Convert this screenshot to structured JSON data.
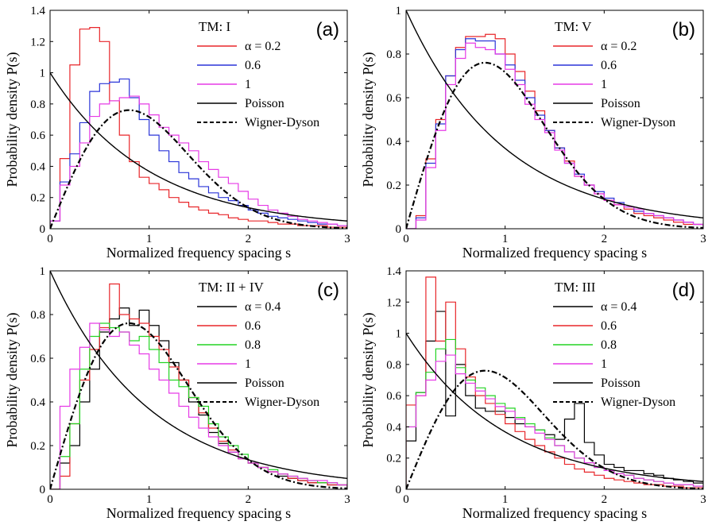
{
  "figure": {
    "xlabel": "Normalized frequency spacing s",
    "ylabel": "Probability density P(s)"
  },
  "chart_data": [
    {
      "type": "line",
      "panel_label": "(a)",
      "legend_title": "TM: I",
      "xlim": [
        0,
        3
      ],
      "ylim": [
        0,
        1.4
      ],
      "xticks": [
        "0",
        "1",
        "2",
        "3"
      ],
      "yticks": [
        "0",
        "0.2",
        "0.4",
        "0.6",
        "0.8",
        "1",
        "1.2",
        "1.4"
      ],
      "bin_edges": [
        0,
        0.1,
        0.2,
        0.3,
        0.4,
        0.5,
        0.6,
        0.7,
        0.8,
        0.9,
        1.0,
        1.1,
        1.2,
        1.3,
        1.4,
        1.5,
        1.6,
        1.7,
        1.8,
        1.9,
        2.0,
        2.1,
        2.2,
        2.3,
        2.4,
        2.5,
        2.6,
        2.7,
        2.8,
        2.9,
        3.0
      ],
      "histograms": [
        {
          "name": "α = 0.2",
          "color": "#e8262a",
          "values": [
            0.05,
            0.45,
            1.05,
            1.28,
            1.29,
            1.2,
            0.82,
            0.6,
            0.43,
            0.33,
            0.29,
            0.25,
            0.2,
            0.17,
            0.14,
            0.12,
            0.1,
            0.09,
            0.07,
            0.06,
            0.05,
            0.05,
            0.04,
            0.03,
            0.03,
            0.02,
            0.02,
            0.02,
            0.01,
            0.01
          ]
        },
        {
          "name": "0.6",
          "color": "#2b35d8",
          "values": [
            0.05,
            0.3,
            0.48,
            0.68,
            0.88,
            0.93,
            0.94,
            0.96,
            0.84,
            0.7,
            0.6,
            0.5,
            0.43,
            0.36,
            0.32,
            0.27,
            0.23,
            0.2,
            0.18,
            0.15,
            0.12,
            0.1,
            0.08,
            0.07,
            0.06,
            0.05,
            0.04,
            0.03,
            0.03,
            0.02
          ]
        },
        {
          "name": "1",
          "color": "#e63ae6",
          "values": [
            0.05,
            0.28,
            0.4,
            0.55,
            0.72,
            0.8,
            0.82,
            0.84,
            0.85,
            0.8,
            0.73,
            0.65,
            0.6,
            0.55,
            0.5,
            0.43,
            0.38,
            0.33,
            0.29,
            0.24,
            0.19,
            0.15,
            0.12,
            0.1,
            0.08,
            0.06,
            0.05,
            0.04,
            0.03,
            0.02
          ]
        }
      ],
      "curves": [
        {
          "name": "Poisson",
          "style": "solid"
        },
        {
          "name": "Wigner-Dyson",
          "style": "dashdot"
        }
      ]
    },
    {
      "type": "line",
      "panel_label": "(b)",
      "legend_title": "TM: V",
      "xlim": [
        0,
        3
      ],
      "ylim": [
        0,
        1
      ],
      "xticks": [
        "0",
        "1",
        "2",
        "3"
      ],
      "yticks": [
        "0",
        "0.2",
        "0.4",
        "0.6",
        "0.8",
        "1"
      ],
      "bin_edges": [
        0,
        0.1,
        0.2,
        0.3,
        0.4,
        0.5,
        0.6,
        0.7,
        0.8,
        0.9,
        1.0,
        1.1,
        1.2,
        1.3,
        1.4,
        1.5,
        1.6,
        1.7,
        1.8,
        1.9,
        2.0,
        2.1,
        2.2,
        2.3,
        2.4,
        2.5,
        2.6,
        2.7,
        2.8,
        2.9,
        3.0
      ],
      "histograms": [
        {
          "name": "α = 0.2",
          "color": "#e8262a",
          "values": [
            0.0,
            0.06,
            0.32,
            0.5,
            0.7,
            0.83,
            0.88,
            0.88,
            0.89,
            0.87,
            0.8,
            0.72,
            0.63,
            0.54,
            0.45,
            0.37,
            0.31,
            0.24,
            0.2,
            0.16,
            0.13,
            0.11,
            0.09,
            0.07,
            0.06,
            0.05,
            0.04,
            0.03,
            0.02,
            0.02
          ]
        },
        {
          "name": "0.6",
          "color": "#2b35d8",
          "values": [
            0.0,
            0.05,
            0.3,
            0.48,
            0.7,
            0.82,
            0.87,
            0.86,
            0.86,
            0.8,
            0.75,
            0.68,
            0.6,
            0.52,
            0.45,
            0.37,
            0.3,
            0.25,
            0.2,
            0.17,
            0.14,
            0.12,
            0.1,
            0.08,
            0.07,
            0.06,
            0.05,
            0.04,
            0.03,
            0.02
          ]
        },
        {
          "name": "1",
          "color": "#e63ae6",
          "values": [
            0.0,
            0.04,
            0.28,
            0.45,
            0.66,
            0.78,
            0.85,
            0.83,
            0.82,
            0.8,
            0.73,
            0.66,
            0.57,
            0.5,
            0.44,
            0.36,
            0.3,
            0.24,
            0.2,
            0.16,
            0.13,
            0.11,
            0.1,
            0.09,
            0.07,
            0.06,
            0.05,
            0.04,
            0.03,
            0.02
          ]
        }
      ],
      "curves": [
        {
          "name": "Poisson",
          "style": "solid"
        },
        {
          "name": "Wigner-Dyson",
          "style": "dashdot"
        }
      ]
    },
    {
      "type": "line",
      "panel_label": "(c)",
      "legend_title": "TM: II + IV",
      "xlim": [
        0,
        3
      ],
      "ylim": [
        0,
        1
      ],
      "xticks": [
        "0",
        "1",
        "2",
        "3"
      ],
      "yticks": [
        "0",
        "0.2",
        "0.4",
        "0.6",
        "0.8",
        "1"
      ],
      "bin_edges": [
        0,
        0.1,
        0.2,
        0.3,
        0.4,
        0.5,
        0.6,
        0.7,
        0.8,
        0.9,
        1.0,
        1.1,
        1.2,
        1.3,
        1.4,
        1.5,
        1.6,
        1.7,
        1.8,
        1.9,
        2.0,
        2.1,
        2.2,
        2.3,
        2.4,
        2.5,
        2.6,
        2.7,
        2.8,
        2.9,
        3.0
      ],
      "histograms": [
        {
          "name": "α = 0.4",
          "color": "#000000",
          "values": [
            0.0,
            0.12,
            0.2,
            0.4,
            0.55,
            0.72,
            0.78,
            0.83,
            0.75,
            0.82,
            0.75,
            0.68,
            0.58,
            0.5,
            0.4,
            0.34,
            0.26,
            0.21,
            0.17,
            0.14,
            0.12,
            0.1,
            0.08,
            0.06,
            0.05,
            0.04,
            0.03,
            0.03,
            0.02,
            0.02
          ]
        },
        {
          "name": "0.6",
          "color": "#e8262a",
          "values": [
            0.0,
            0.06,
            0.3,
            0.5,
            0.64,
            0.74,
            0.94,
            0.8,
            0.78,
            0.76,
            0.7,
            0.64,
            0.56,
            0.5,
            0.42,
            0.35,
            0.28,
            0.22,
            0.18,
            0.14,
            0.12,
            0.1,
            0.08,
            0.07,
            0.05,
            0.04,
            0.03,
            0.03,
            0.02,
            0.02
          ]
        },
        {
          "name": "0.8",
          "color": "#23d423",
          "values": [
            0.0,
            0.15,
            0.3,
            0.55,
            0.7,
            0.76,
            0.74,
            0.72,
            0.68,
            0.7,
            0.64,
            0.58,
            0.5,
            0.47,
            0.42,
            0.38,
            0.3,
            0.24,
            0.2,
            0.16,
            0.12,
            0.1,
            0.09,
            0.07,
            0.06,
            0.05,
            0.04,
            0.03,
            0.03,
            0.02
          ]
        },
        {
          "name": "1",
          "color": "#e63ae6",
          "values": [
            0.0,
            0.38,
            0.55,
            0.65,
            0.76,
            0.73,
            0.7,
            0.72,
            0.66,
            0.62,
            0.55,
            0.5,
            0.44,
            0.38,
            0.33,
            0.28,
            0.24,
            0.2,
            0.17,
            0.14,
            0.12,
            0.1,
            0.08,
            0.07,
            0.06,
            0.05,
            0.04,
            0.04,
            0.03,
            0.02
          ]
        }
      ],
      "curves": [
        {
          "name": "Poisson",
          "style": "solid"
        },
        {
          "name": "Wigner-Dyson",
          "style": "dashdot"
        }
      ]
    },
    {
      "type": "line",
      "panel_label": "(d)",
      "legend_title": "TM: III",
      "xlim": [
        0,
        3
      ],
      "ylim": [
        0,
        1.4
      ],
      "xticks": [
        "0",
        "1",
        "2",
        "3"
      ],
      "yticks": [
        "0",
        "0.2",
        "0.4",
        "0.6",
        "0.8",
        "1",
        "1.2",
        "1.4"
      ],
      "bin_edges": [
        0,
        0.1,
        0.2,
        0.3,
        0.4,
        0.5,
        0.6,
        0.7,
        0.8,
        0.9,
        1.0,
        1.1,
        1.2,
        1.3,
        1.4,
        1.5,
        1.6,
        1.7,
        1.8,
        1.9,
        2.0,
        2.1,
        2.2,
        2.3,
        2.4,
        2.5,
        2.6,
        2.7,
        2.8,
        2.9,
        3.0
      ],
      "histograms": [
        {
          "name": "α = 0.4",
          "color": "#000000",
          "values": [
            0.31,
            0.62,
            0.95,
            1.14,
            0.47,
            0.8,
            0.6,
            0.52,
            0.5,
            0.5,
            0.46,
            0.42,
            0.4,
            0.38,
            0.35,
            0.32,
            0.45,
            0.55,
            0.3,
            0.22,
            0.16,
            0.14,
            0.12,
            0.12,
            0.1,
            0.09,
            0.07,
            0.06,
            0.05,
            0.04
          ]
        },
        {
          "name": "0.6",
          "color": "#e8262a",
          "values": [
            0.54,
            0.6,
            1.36,
            0.95,
            1.2,
            0.9,
            0.72,
            0.6,
            0.55,
            0.48,
            0.42,
            0.37,
            0.32,
            0.28,
            0.24,
            0.2,
            0.16,
            0.13,
            0.11,
            0.09,
            0.07,
            0.06,
            0.05,
            0.04,
            0.03,
            0.03,
            0.02,
            0.02,
            0.01,
            0.01
          ]
        },
        {
          "name": "0.8",
          "color": "#23d423",
          "values": [
            0.4,
            0.62,
            0.75,
            0.9,
            0.96,
            0.78,
            0.7,
            0.65,
            0.6,
            0.55,
            0.52,
            0.46,
            0.42,
            0.38,
            0.33,
            0.28,
            0.24,
            0.2,
            0.17,
            0.14,
            0.12,
            0.1,
            0.09,
            0.07,
            0.06,
            0.05,
            0.04,
            0.03,
            0.03,
            0.02
          ]
        },
        {
          "name": "1",
          "color": "#e63ae6",
          "values": [
            0.4,
            0.6,
            0.7,
            0.82,
            0.86,
            0.74,
            0.68,
            0.63,
            0.58,
            0.53,
            0.5,
            0.45,
            0.4,
            0.36,
            0.32,
            0.28,
            0.24,
            0.2,
            0.17,
            0.14,
            0.12,
            0.1,
            0.09,
            0.07,
            0.06,
            0.05,
            0.04,
            0.03,
            0.03,
            0.02
          ]
        }
      ],
      "curves": [
        {
          "name": "Poisson",
          "style": "solid"
        },
        {
          "name": "Wigner-Dyson",
          "style": "dashdot"
        }
      ]
    }
  ]
}
